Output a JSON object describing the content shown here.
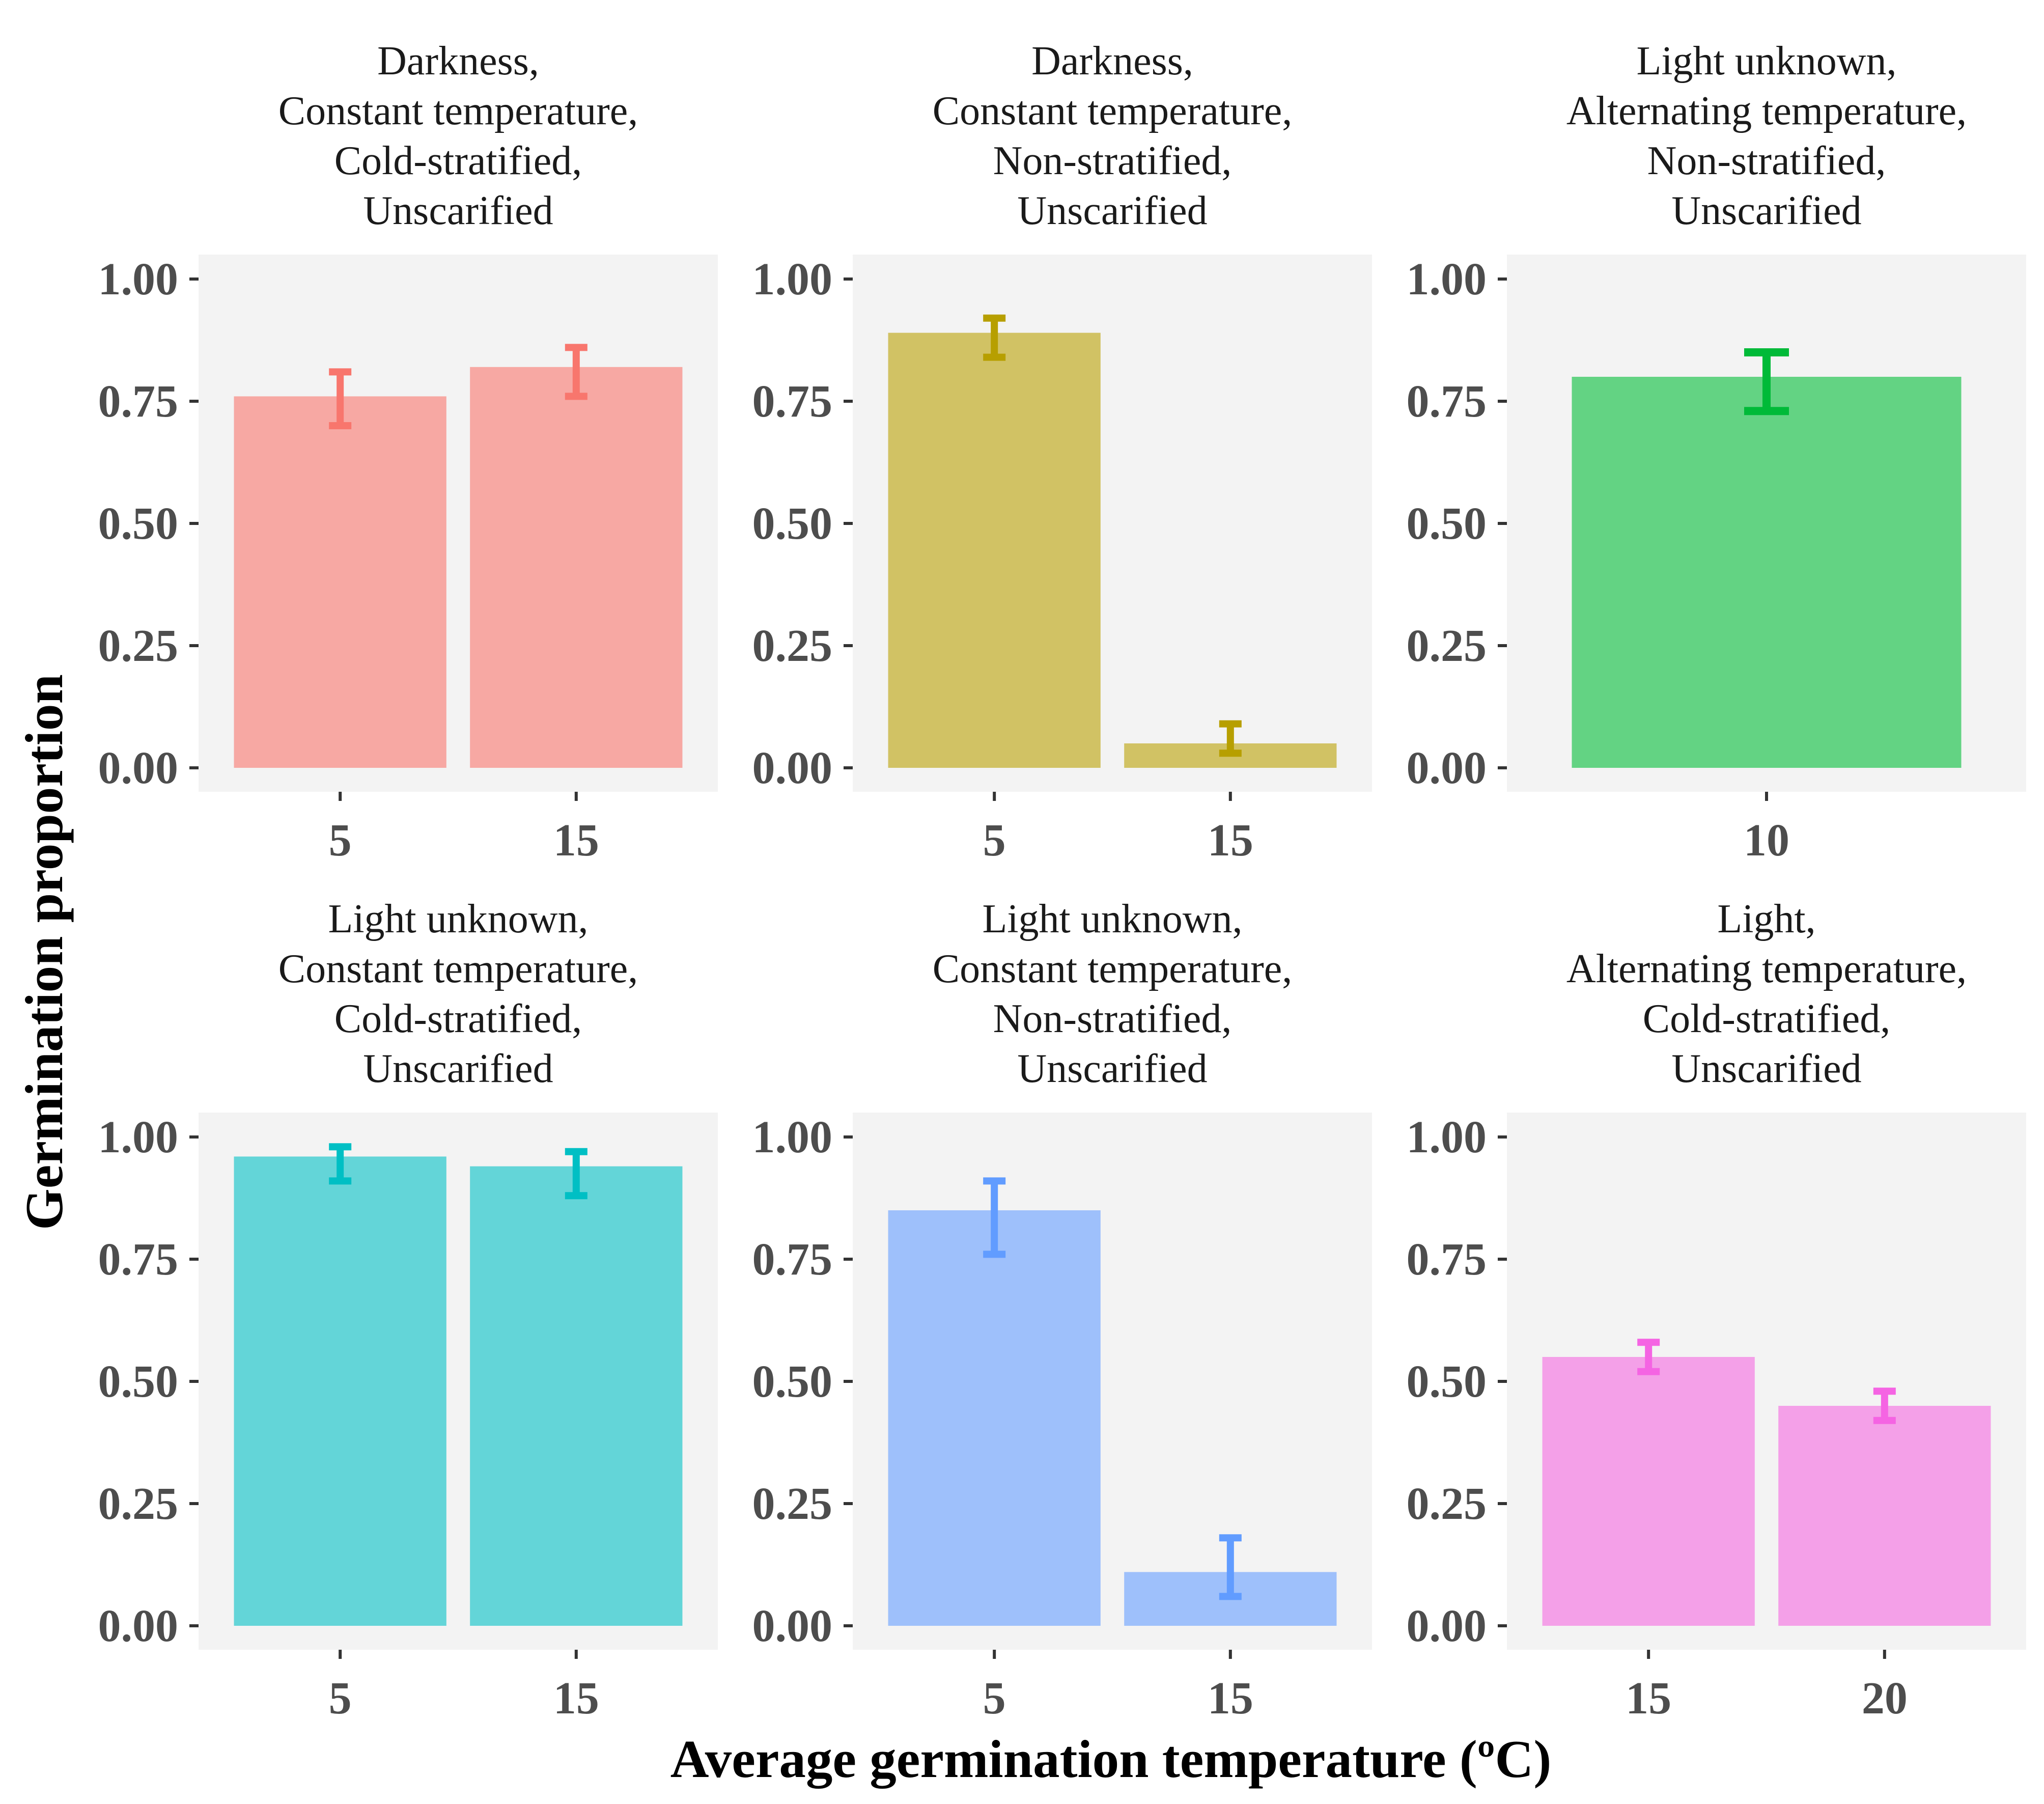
{
  "chart_data": {
    "type": "bar",
    "xlabel": "Average germination temperature (ºC)",
    "ylabel": "Germination proportion",
    "ylim": [
      0,
      1.05
    ],
    "yticks": [
      "0.00",
      "0.25",
      "0.50",
      "0.75",
      "1.00"
    ],
    "grid": false,
    "panel_background": "#f3f3f3",
    "facets": [
      {
        "title_lines": [
          "Darkness,",
          "Constant temperature,",
          "Cold-stratified,",
          "Unscarified"
        ],
        "color": "#F8766D",
        "fill": "#F7A8A3",
        "categories": [
          "5",
          "15"
        ],
        "values": [
          0.76,
          0.82
        ],
        "err_low": [
          0.7,
          0.76
        ],
        "err_high": [
          0.81,
          0.86
        ]
      },
      {
        "title_lines": [
          "Darkness,",
          "Constant temperature,",
          "Non-stratified,",
          "Unscarified"
        ],
        "color": "#B79F00",
        "fill": "#D1C264",
        "categories": [
          "5",
          "15"
        ],
        "values": [
          0.89,
          0.05
        ],
        "err_low": [
          0.84,
          0.03
        ],
        "err_high": [
          0.92,
          0.09
        ]
      },
      {
        "title_lines": [
          "Light unknown,",
          "Alternating temperature,",
          "Non-stratified,",
          "Unscarified"
        ],
        "color": "#00BA38",
        "fill": "#63D383",
        "categories": [
          "10"
        ],
        "values": [
          0.8
        ],
        "err_low": [
          0.73
        ],
        "err_high": [
          0.85
        ]
      },
      {
        "title_lines": [
          "Light unknown,",
          "Constant temperature,",
          "Cold-stratified,",
          "Unscarified"
        ],
        "color": "#00BFC4",
        "fill": "#63D5D8",
        "categories": [
          "5",
          "15"
        ],
        "values": [
          0.96,
          0.94
        ],
        "err_low": [
          0.91,
          0.88
        ],
        "err_high": [
          0.98,
          0.97
        ]
      },
      {
        "title_lines": [
          "Light unknown,",
          "Constant temperature,",
          "Non-stratified,",
          "Unscarified"
        ],
        "color": "#619CFF",
        "fill": "#9EC0FB",
        "categories": [
          "5",
          "15"
        ],
        "values": [
          0.85,
          0.11
        ],
        "err_low": [
          0.76,
          0.06
        ],
        "err_high": [
          0.91,
          0.18
        ]
      },
      {
        "title_lines": [
          "Light,",
          "Alternating temperature,",
          "Cold-stratified,",
          "Unscarified"
        ],
        "color": "#F564E3",
        "fill": "#F4A0E8",
        "categories": [
          "15",
          "20"
        ],
        "values": [
          0.55,
          0.45
        ],
        "err_low": [
          0.52,
          0.42
        ],
        "err_high": [
          0.58,
          0.48
        ]
      }
    ]
  }
}
